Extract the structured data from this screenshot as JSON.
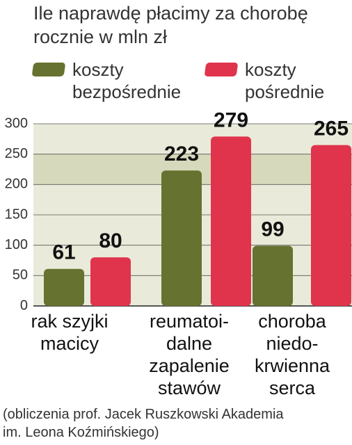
{
  "chart_data": {
    "type": "bar",
    "title": "Ile naprawdę płacimy za chorobę\nrocznie w mln zł",
    "categories": [
      "rak szyjki\nmacicy",
      "reumatoi-\ndalne\nzapalenie\nstawów",
      "choroba\nniedo-\nkrwienna\nserca"
    ],
    "series": [
      {
        "name": "koszty\nbezpośrednie",
        "color": "#66722f",
        "values": [
          61,
          223,
          99
        ]
      },
      {
        "name": "koszty\npośrednie",
        "color": "#e0344c",
        "values": [
          80,
          279,
          265
        ]
      }
    ],
    "ylim": [
      0,
      300
    ],
    "yticks": [
      0,
      50,
      100,
      150,
      200,
      250,
      300
    ],
    "grid": true,
    "footnote": "(obliczenia prof. Jacek Ruszkowski Akademia\nim. Leona Koźmińskiego)"
  }
}
